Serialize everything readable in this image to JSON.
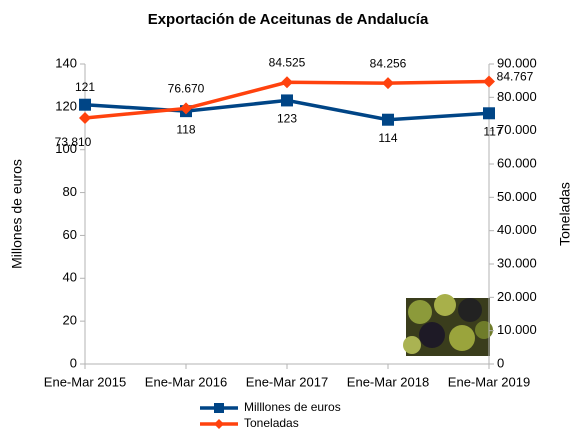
{
  "chart_data": {
    "type": "line",
    "title": "Exportación de Aceitunas de Andalucía",
    "ylabel": "Millones de euros",
    "y2label": "Toneladas",
    "categories": [
      "Ene-Mar 2015",
      "Ene-Mar 2016",
      "Ene-Mar 2017",
      "Ene-Mar 2018",
      "Ene-Mar 2019"
    ],
    "series": [
      {
        "name": "Milllones de euros",
        "color": "#004586",
        "marker": "square",
        "values": [
          121,
          118,
          123,
          114,
          117
        ]
      },
      {
        "name": "Toneladas",
        "color": "#ff420e",
        "marker": "diamond",
        "axis": "y2",
        "values": [
          73810,
          76670,
          84525,
          84256,
          84767
        ],
        "value_labels": [
          "73.810",
          "76.670",
          "84.525",
          "84.256",
          "84.767"
        ]
      }
    ],
    "ylim": [
      0,
      140
    ],
    "yticks": [
      0,
      20,
      40,
      60,
      80,
      100,
      120,
      140
    ],
    "y2lim": [
      0,
      90000
    ],
    "y2ticks": [
      {
        "value": 0,
        "label": "0"
      },
      {
        "value": 10000,
        "label": "10.000"
      },
      {
        "value": 20000,
        "label": "20.000"
      },
      {
        "value": 30000,
        "label": "30.000"
      },
      {
        "value": 40000,
        "label": "40.000"
      },
      {
        "value": 50000,
        "label": "50.000"
      },
      {
        "value": 60000,
        "label": "60.000"
      },
      {
        "value": 70000,
        "label": "70.000"
      },
      {
        "value": 80000,
        "label": "80.000"
      },
      {
        "value": 90000,
        "label": "90.000"
      }
    ],
    "grid": false,
    "legend": "bottom"
  }
}
